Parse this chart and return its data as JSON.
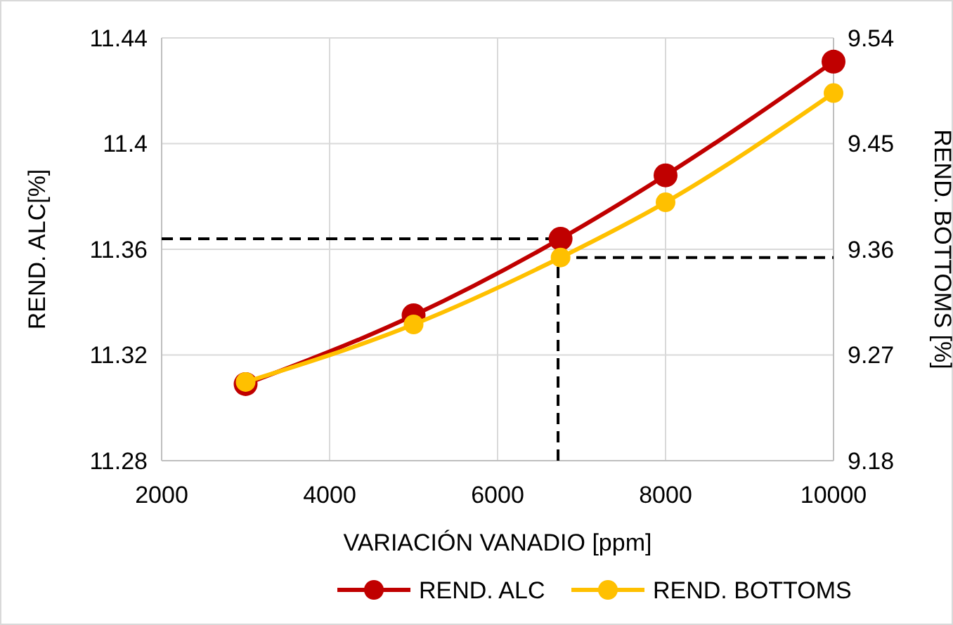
{
  "chart_data": {
    "type": "line",
    "xlabel": "VARIACIÓN VANADIO [ppm]",
    "ylabel": "REND. ALC[%]",
    "y2label": "REND. BOTTOMS [%]",
    "x": [
      3000,
      5000,
      6750,
      8000,
      10000
    ],
    "series": [
      {
        "name": "REND. ALC",
        "color": "#c00000",
        "values": [
          11.309,
          11.335,
          11.364,
          11.388,
          11.431
        ]
      },
      {
        "name": "REND. BOTTOMS",
        "color": "#ffc000",
        "axis": "y2",
        "values": [
          9.247,
          9.296,
          9.353,
          9.4,
          9.493
        ]
      }
    ],
    "xlim": [
      2000,
      10000
    ],
    "xticks": [
      2000,
      4000,
      6000,
      8000,
      10000
    ],
    "ylim": [
      11.28,
      11.44
    ],
    "yticks": [
      11.28,
      11.32,
      11.36,
      11.4,
      11.44
    ],
    "y2lim": [
      9.18,
      9.54
    ],
    "y2ticks": [
      9.18,
      9.27,
      9.36,
      9.45,
      9.54
    ],
    "ref_lines": [
      {
        "axis": "y",
        "value": 11.364,
        "line_style": "dashed",
        "color": "#000000"
      },
      {
        "axis": "x",
        "value": 6720,
        "line_style": "dashed",
        "color": "#000000"
      },
      {
        "axis": "y2",
        "value": 9.353,
        "line_style": "dashed",
        "color": "#000000"
      }
    ],
    "grid": true,
    "legend": "bottom",
    "marker": "circle",
    "line_style": "solid"
  }
}
